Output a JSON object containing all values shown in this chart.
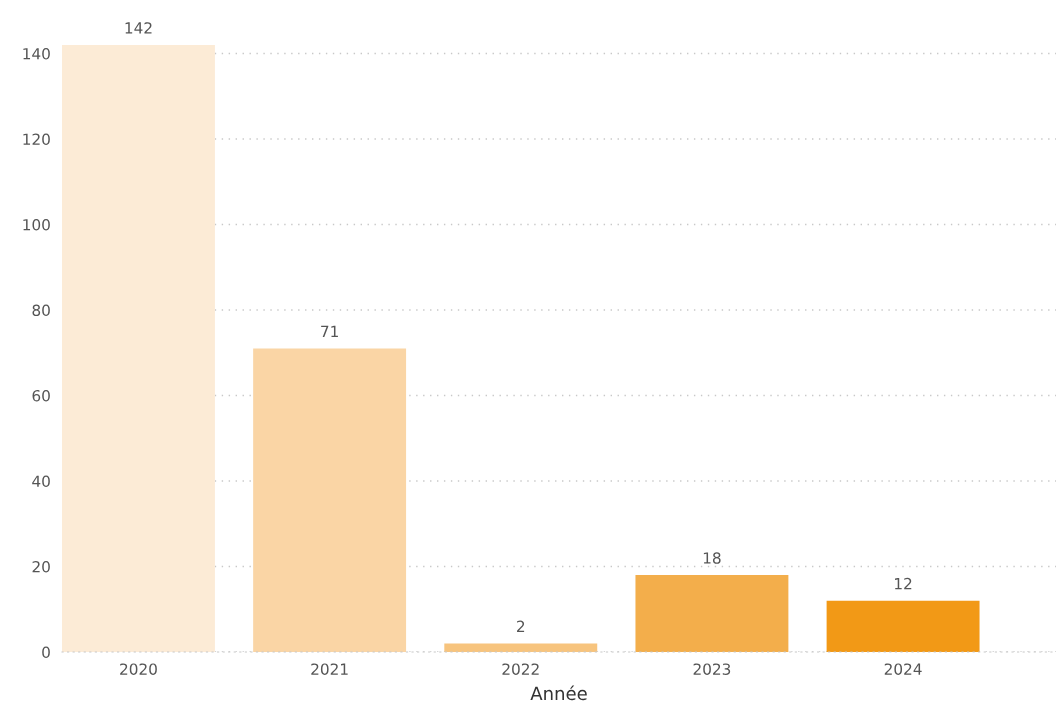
{
  "chart_data": {
    "type": "bar",
    "xlabel": "Année",
    "categories": [
      "2020",
      "2021",
      "2022",
      "2023",
      "2024"
    ],
    "values": [
      142,
      71,
      2,
      18,
      12
    ],
    "colors": [
      "#fcebd6",
      "#fad5a5",
      "#f7c47e",
      "#f3ae4b",
      "#f29916"
    ],
    "ylim": [
      0,
      142
    ],
    "yticks": [
      0,
      20,
      40,
      60,
      80,
      100,
      120,
      140
    ],
    "grid": "y",
    "data_labels": true
  }
}
